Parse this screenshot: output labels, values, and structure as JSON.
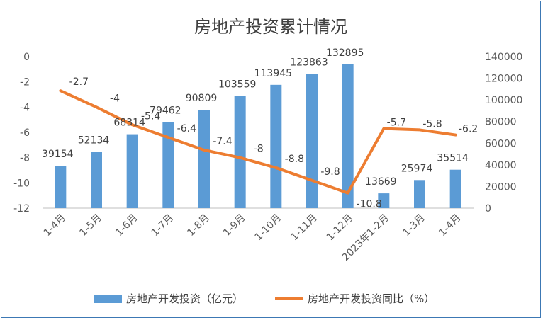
{
  "chart_data": {
    "type": "bar+line",
    "title": "房地产投资累计情况",
    "categories": [
      "1-4月",
      "1-5月",
      "1-6月",
      "1-7月",
      "1-8月",
      "1-9月",
      "1-10月",
      "1-11月",
      "1-12月",
      "2023年1-2月",
      "1-3月",
      "1-4月"
    ],
    "series": [
      {
        "name": "房地产开发投资（亿元）",
        "type": "bar",
        "axis": "right",
        "color": "#5b9bd5",
        "values": [
          39154,
          52134,
          68314,
          79462,
          90809,
          103559,
          113945,
          123863,
          132895,
          13669,
          25974,
          35514
        ],
        "labels": [
          "39154",
          "52134",
          "68314",
          "79462",
          "90809",
          "103559",
          "113945",
          "123863",
          "132895",
          "13669",
          "25974",
          "35514"
        ]
      },
      {
        "name": "房地产开发投资同比（%）",
        "type": "line",
        "axis": "left",
        "color": "#ed7d31",
        "values": [
          -2.7,
          -4,
          -5.4,
          -6.4,
          -7.4,
          -8,
          -8.8,
          -9.8,
          -10.8,
          -5.7,
          -5.8,
          -6.2
        ],
        "labels": [
          "-2.7",
          "-4",
          "-5.4",
          "-6.4",
          "-7.4",
          "-8",
          "-8.8",
          "-9.8",
          "-10.8",
          "-5.7",
          "-5.8",
          "-6.2"
        ]
      }
    ],
    "left_axis": {
      "range": [
        -12,
        0
      ],
      "ticks": [
        "0",
        "-2",
        "-4",
        "-6",
        "-8",
        "-10",
        "-12"
      ]
    },
    "right_axis": {
      "range": [
        0,
        140000
      ],
      "ticks": [
        "140000",
        "120000",
        "100000",
        "80000",
        "60000",
        "40000",
        "20000",
        "0"
      ]
    },
    "grid": false,
    "legend_position": "bottom"
  }
}
